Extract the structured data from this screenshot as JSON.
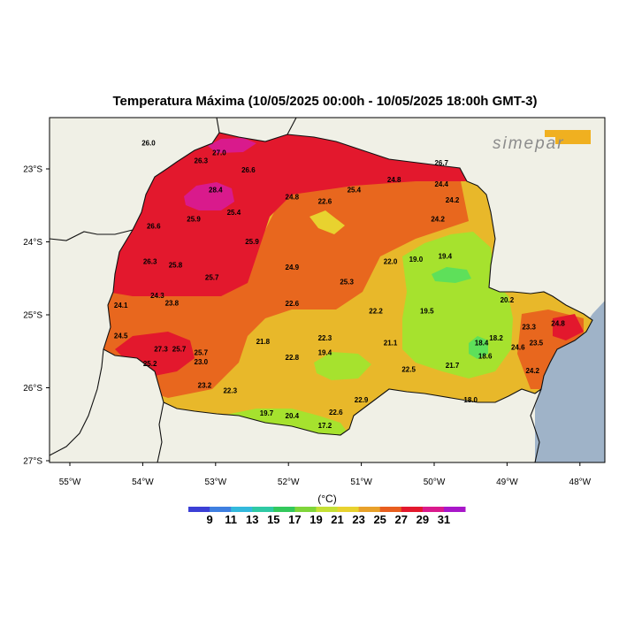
{
  "title": "Temperatura Máxima (10/05/2025 00:00h - 10/05/2025 18:00h GMT-3)",
  "logo": {
    "text": "SIMEPAR",
    "accent_color": "#f0b020"
  },
  "colors": {
    "ocean": "#9fb3c8",
    "land": "#f0f0e6",
    "c19": "#a6e22e",
    "c21": "#5ee05a",
    "c23": "#e8b82a",
    "c25": "#e8671e",
    "c27": "#e3182d",
    "c29": "#d91a8c"
  },
  "axes": {
    "lat_labels": [
      "23°S",
      "24°S",
      "25°S",
      "26°S",
      "27°S"
    ],
    "lon_labels": [
      "55°W",
      "54°W",
      "53°W",
      "52°W",
      "51°W",
      "50°W",
      "49°W",
      "48°W"
    ]
  },
  "legend": {
    "unit": "(°C)",
    "labels": [
      "9",
      "11",
      "13",
      "15",
      "17",
      "19",
      "21",
      "23",
      "25",
      "27",
      "29",
      "31"
    ],
    "colors": [
      "#3b3fd6",
      "#3f7fe0",
      "#33b9dc",
      "#2fc9a4",
      "#33c85c",
      "#7fd53a",
      "#c5e035",
      "#e8d22f",
      "#e8a12a",
      "#e85e1f",
      "#e3182d",
      "#d91a8c",
      "#a817c9"
    ]
  },
  "station_values": [
    {
      "v": "26.0",
      "lon": -53.92,
      "lat": -22.68
    },
    {
      "v": "27.0",
      "lon": -52.95,
      "lat": -22.81
    },
    {
      "v": "26.3",
      "lon": -53.2,
      "lat": -22.92
    },
    {
      "v": "26.6",
      "lon": -52.55,
      "lat": -23.05
    },
    {
      "v": "28.4",
      "lon": -53.0,
      "lat": -23.32
    },
    {
      "v": "24.8",
      "lon": -51.95,
      "lat": -23.42
    },
    {
      "v": "22.6",
      "lon": -51.5,
      "lat": -23.48
    },
    {
      "v": "25.4",
      "lon": -51.1,
      "lat": -23.32
    },
    {
      "v": "24.8",
      "lon": -50.55,
      "lat": -23.18
    },
    {
      "v": "26.7",
      "lon": -49.9,
      "lat": -22.95
    },
    {
      "v": "24.4",
      "lon": -49.9,
      "lat": -23.24
    },
    {
      "v": "24.2",
      "lon": -49.75,
      "lat": -23.46
    },
    {
      "v": "24.2",
      "lon": -49.95,
      "lat": -23.72
    },
    {
      "v": "25.4",
      "lon": -52.75,
      "lat": -23.63
    },
    {
      "v": "25.9",
      "lon": -53.3,
      "lat": -23.72
    },
    {
      "v": "26.6",
      "lon": -53.85,
      "lat": -23.82
    },
    {
      "v": "25.9",
      "lon": -52.5,
      "lat": -24.03
    },
    {
      "v": "26.3",
      "lon": -53.9,
      "lat": -24.3
    },
    {
      "v": "25.8",
      "lon": -53.55,
      "lat": -24.35
    },
    {
      "v": "24.9",
      "lon": -51.95,
      "lat": -24.38
    },
    {
      "v": "22.0",
      "lon": -50.6,
      "lat": -24.3
    },
    {
      "v": "19.0",
      "lon": -50.25,
      "lat": -24.27
    },
    {
      "v": "19.4",
      "lon": -49.85,
      "lat": -24.23
    },
    {
      "v": "25.7",
      "lon": -53.05,
      "lat": -24.52
    },
    {
      "v": "25.3",
      "lon": -51.2,
      "lat": -24.58
    },
    {
      "v": "24.3",
      "lon": -53.8,
      "lat": -24.77
    },
    {
      "v": "23.8",
      "lon": -53.6,
      "lat": -24.87
    },
    {
      "v": "24.1",
      "lon": -54.3,
      "lat": -24.9
    },
    {
      "v": "22.6",
      "lon": -51.95,
      "lat": -24.88
    },
    {
      "v": "22.2",
      "lon": -50.8,
      "lat": -24.98
    },
    {
      "v": "20.2",
      "lon": -49.0,
      "lat": -24.83
    },
    {
      "v": "19.5",
      "lon": -50.1,
      "lat": -24.98
    },
    {
      "v": "24.5",
      "lon": -54.3,
      "lat": -25.32
    },
    {
      "v": "21.8",
      "lon": -52.35,
      "lat": -25.4
    },
    {
      "v": "22.3",
      "lon": -51.5,
      "lat": -25.35
    },
    {
      "v": "21.1",
      "lon": -50.6,
      "lat": -25.42
    },
    {
      "v": "23.3",
      "lon": -48.7,
      "lat": -25.2
    },
    {
      "v": "24.8",
      "lon": -48.3,
      "lat": -25.15
    },
    {
      "v": "18.2",
      "lon": -49.15,
      "lat": -25.35
    },
    {
      "v": "18.4",
      "lon": -49.35,
      "lat": -25.42
    },
    {
      "v": "23.5",
      "lon": -48.6,
      "lat": -25.42
    },
    {
      "v": "24.6",
      "lon": -48.85,
      "lat": -25.48
    },
    {
      "v": "27.3",
      "lon": -53.75,
      "lat": -25.5
    },
    {
      "v": "25.7",
      "lon": -53.5,
      "lat": -25.5
    },
    {
      "v": "25.7",
      "lon": -53.2,
      "lat": -25.55
    },
    {
      "v": "19.4",
      "lon": -51.5,
      "lat": -25.55
    },
    {
      "v": "22.8",
      "lon": -51.95,
      "lat": -25.62
    },
    {
      "v": "25.2",
      "lon": -53.9,
      "lat": -25.7
    },
    {
      "v": "23.0",
      "lon": -53.2,
      "lat": -25.68
    },
    {
      "v": "18.6",
      "lon": -49.3,
      "lat": -25.6
    },
    {
      "v": "21.7",
      "lon": -49.75,
      "lat": -25.73
    },
    {
      "v": "22.5",
      "lon": -50.35,
      "lat": -25.78
    },
    {
      "v": "24.2",
      "lon": -48.65,
      "lat": -25.8
    },
    {
      "v": "23.2",
      "lon": -53.15,
      "lat": -26.0
    },
    {
      "v": "22.3",
      "lon": -52.8,
      "lat": -26.07
    },
    {
      "v": "18.0",
      "lon": -49.5,
      "lat": -26.2
    },
    {
      "v": "22.9",
      "lon": -51.0,
      "lat": -26.2
    },
    {
      "v": "22.6",
      "lon": -51.35,
      "lat": -26.37
    },
    {
      "v": "19.7",
      "lon": -52.3,
      "lat": -26.38
    },
    {
      "v": "20.4",
      "lon": -51.95,
      "lat": -26.42
    },
    {
      "v": "17.2",
      "lon": -51.5,
      "lat": -26.55
    }
  ]
}
